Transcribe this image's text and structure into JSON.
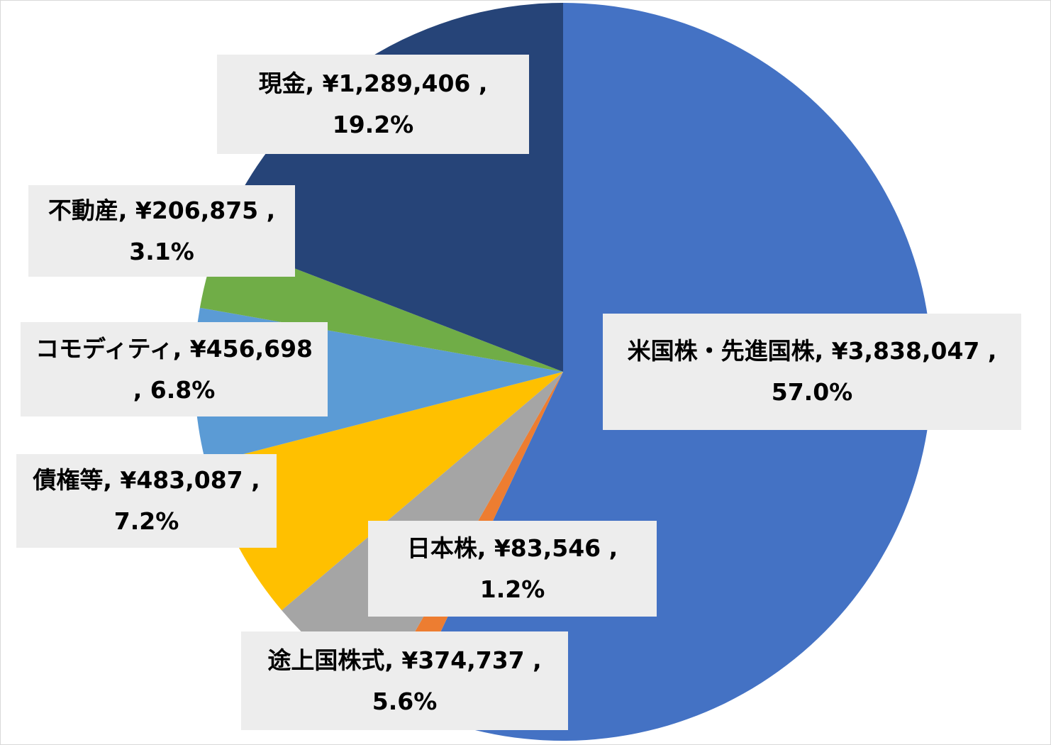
{
  "chart_data": {
    "type": "pie",
    "title": "",
    "slices": [
      {
        "label": "米国株・先進国株",
        "value": 3838047,
        "value_text": "¥3,838,047",
        "percent": 57.0,
        "percent_text": "57.0%",
        "color": "#4472C4",
        "text": "米国株・先進国株, ¥3,838,047 , 57.0%"
      },
      {
        "label": "日本株",
        "value": 83546,
        "value_text": "¥83,546",
        "percent": 1.2,
        "percent_text": "1.2%",
        "color": "#ED7D31",
        "text": "日本株, ¥83,546 , 1.2%"
      },
      {
        "label": "途上国株式",
        "value": 374737,
        "value_text": "¥374,737",
        "percent": 5.6,
        "percent_text": "5.6%",
        "color": "#A5A5A5",
        "text": "途上国株式, ¥374,737 , 5.6%"
      },
      {
        "label": "債権等",
        "value": 483087,
        "value_text": "¥483,087",
        "percent": 7.2,
        "percent_text": "7.2%",
        "color": "#FFC000",
        "text": "債権等, ¥483,087 , 7.2%"
      },
      {
        "label": "コモディティ",
        "value": 456698,
        "value_text": "¥456,698",
        "percent": 6.8,
        "percent_text": "6.8%",
        "color": "#5B9BD5",
        "text": "コモディティ, ¥456,698 , 6.8%"
      },
      {
        "label": "不動産",
        "value": 206875,
        "value_text": "¥206,875",
        "percent": 3.1,
        "percent_text": "3.1%",
        "color": "#70AD47",
        "text": "不動産, ¥206,875 , 3.1%"
      },
      {
        "label": "現金",
        "value": 1289406,
        "value_text": "¥1,289,406",
        "percent": 19.2,
        "percent_text": "19.2%",
        "color": "#264478",
        "text": "現金, ¥1,289,406 , 19.2%"
      }
    ],
    "start_angle": "12 o'clock",
    "direction": "clockwise",
    "legend": "none",
    "label_background": "#EDEDED"
  }
}
